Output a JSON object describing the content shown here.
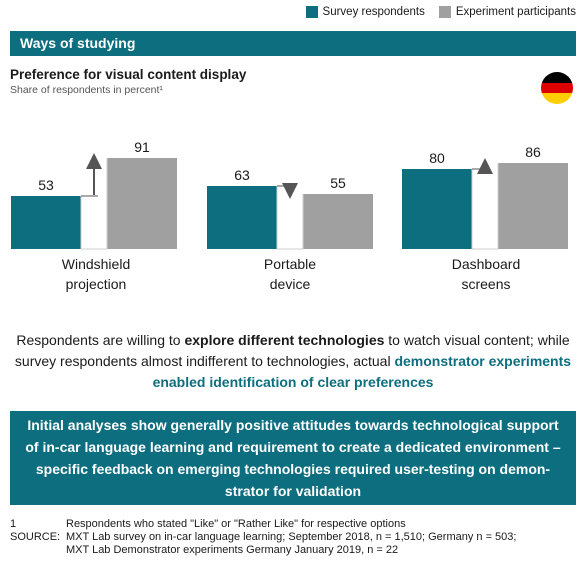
{
  "legend": [
    {
      "label": "Survey respondents",
      "color": "#0d6e7f"
    },
    {
      "label": "Experiment participants",
      "color": "#a0a0a0"
    }
  ],
  "section_title": "Ways of studying",
  "chart_title": "Preference for visual content display",
  "chart_subtitle": "Share of respondents in percent¹",
  "flag_colors": [
    "#000000",
    "#dd0000",
    "#ffce00"
  ],
  "chart_data": {
    "type": "bar",
    "title": "Preference for visual content display",
    "subtitle": "Share of respondents in percent¹",
    "categories": [
      "Windshield projection",
      "Portable device",
      "Dashboard screens"
    ],
    "category_lines": [
      [
        "Windshield",
        "projection"
      ],
      [
        "Portable",
        "device"
      ],
      [
        "Dashboard",
        "screens"
      ]
    ],
    "series": [
      {
        "name": "Survey respondents",
        "values": [
          53,
          63,
          80
        ],
        "color": "#0d6e7f"
      },
      {
        "name": "Experiment participants",
        "values": [
          91,
          55,
          86
        ],
        "color": "#a0a0a0"
      }
    ],
    "ylim": [
      0,
      100
    ],
    "grid": false,
    "legend_position": "top-right"
  },
  "statement": {
    "p1": "Respondents are willing to ",
    "b1": "explore different technologies",
    "p2": " to watch visual content; while survey respondents almost indifferent to technologies, actual ",
    "h1": "demonstrator experiments enabled identification of clear preferences"
  },
  "conclusion": "Initial analyses show generally positive attitudes towards technological support of in-car language learning and requirement to create a dedicated environment – specific feedback on emerging technologies required user-testing on demon-strator for validation",
  "footnotes": [
    {
      "key": "1",
      "text": "Respondents who stated \"Like\" or \"Rather Like\" for respective options"
    },
    {
      "key": "SOURCE:",
      "text": "MXT Lab survey on in-car language learning; September 2018, n = 1,510; Germany n = 503;"
    },
    {
      "key": "",
      "text": "MXT Lab Demonstrator experiments Germany January 2019, n = 22"
    }
  ]
}
